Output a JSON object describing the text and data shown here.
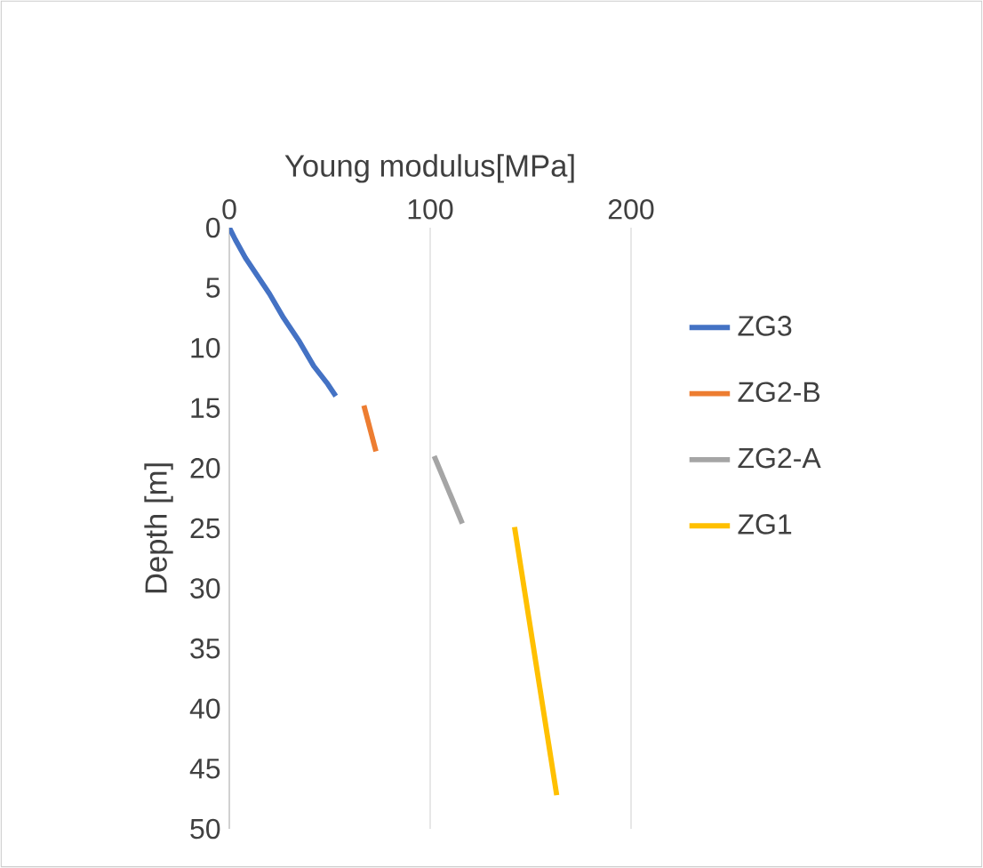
{
  "chart_data": {
    "type": "line",
    "xlabel": "Young modulus[MPa]",
    "ylabel": "Depth [m]",
    "xlim": [
      0,
      200
    ],
    "xticks": [
      0,
      100,
      200
    ],
    "ylim": [
      50,
      0
    ],
    "yticks": [
      0,
      5,
      10,
      15,
      20,
      25,
      30,
      35,
      40,
      45,
      50
    ],
    "grid": "x",
    "legend": "right",
    "marker": "none",
    "line_style": "solid",
    "series": [
      {
        "name": "ZG3",
        "color": "#4472c4",
        "x": [
          0,
          3,
          8,
          14,
          20,
          27,
          35,
          42,
          49,
          51,
          53
        ],
        "values": [
          0,
          1,
          2.5,
          4,
          5.5,
          7.5,
          9.5,
          11.5,
          13,
          13.5,
          14
        ]
      },
      {
        "name": "ZG2-B",
        "color": "#ed7d31",
        "x": [
          67,
          73
        ],
        "values": [
          14.8,
          18.6
        ]
      },
      {
        "name": "ZG2-A",
        "color": "#a5a5a5",
        "x": [
          102,
          116
        ],
        "values": [
          19,
          24.6
        ]
      },
      {
        "name": "ZG1",
        "color": "#ffc000",
        "x": [
          142,
          163
        ],
        "values": [
          24.9,
          47.2
        ]
      }
    ]
  }
}
